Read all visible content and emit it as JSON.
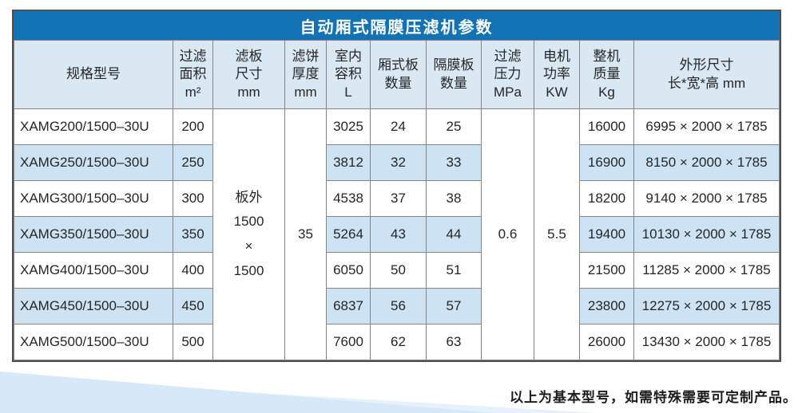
{
  "title": "自动厢式隔膜压滤机参数",
  "columns": [
    {
      "label": "规格型号"
    },
    {
      "label": "过滤\n面积\nm²"
    },
    {
      "label": "滤板\n尺寸\nmm"
    },
    {
      "label": "滤饼\n厚度\nmm"
    },
    {
      "label": "室内\n容积\nL"
    },
    {
      "label": "厢式板\n数量"
    },
    {
      "label": "隔膜板\n数量"
    },
    {
      "label": "过滤\n压力\nMPa"
    },
    {
      "label": "电机\n功率\nKW"
    },
    {
      "label": "整机\n质量\nKg"
    },
    {
      "label": "外形尺寸\n长*宽*高 mm"
    }
  ],
  "merged": {
    "plate_size": "板外\n1500\n×\n1500",
    "cake_thickness": "35",
    "filter_pressure": "0.6",
    "motor_power": "5.5"
  },
  "rows": [
    {
      "model": "XAMG200/1500–30U",
      "area": "200",
      "volume": "3025",
      "chamber_plates": "24",
      "diaphragm_plates": "25",
      "weight": "16000",
      "dimensions": "6995 × 2000 × 1785"
    },
    {
      "model": "XAMG250/1500–30U",
      "area": "250",
      "volume": "3812",
      "chamber_plates": "32",
      "diaphragm_plates": "33",
      "weight": "16900",
      "dimensions": "8150 × 2000 × 1785"
    },
    {
      "model": "XAMG300/1500–30U",
      "area": "300",
      "volume": "4538",
      "chamber_plates": "37",
      "diaphragm_plates": "38",
      "weight": "18200",
      "dimensions": "9140 × 2000 × 1785"
    },
    {
      "model": "XAMG350/1500–30U",
      "area": "350",
      "volume": "5264",
      "chamber_plates": "43",
      "diaphragm_plates": "44",
      "weight": "19400",
      "dimensions": "10130 × 2000 × 1785"
    },
    {
      "model": "XAMG400/1500–30U",
      "area": "400",
      "volume": "6050",
      "chamber_plates": "50",
      "diaphragm_plates": "51",
      "weight": "21500",
      "dimensions": "11285 × 2000 × 1785"
    },
    {
      "model": "XAMG450/1500–30U",
      "area": "450",
      "volume": "6837",
      "chamber_plates": "56",
      "diaphragm_plates": "57",
      "weight": "23800",
      "dimensions": "12275 × 2000 × 1785"
    },
    {
      "model": "XAMG500/1500–30U",
      "area": "500",
      "volume": "7600",
      "chamber_plates": "62",
      "diaphragm_plates": "63",
      "weight": "26000",
      "dimensions": "13430 × 2000 × 1785"
    }
  ],
  "footnote": "以上为基本型号，如需特殊需要可定制产品。",
  "colors": {
    "title_bg": "#1272b4",
    "header_bg": "#d9e8f3",
    "stripe_bg": "#cde3f3",
    "border": "#858585",
    "outer_border": "#4f4f4f",
    "wedge": "#d7e8f8",
    "wedge_light": "#e6f1fb"
  }
}
